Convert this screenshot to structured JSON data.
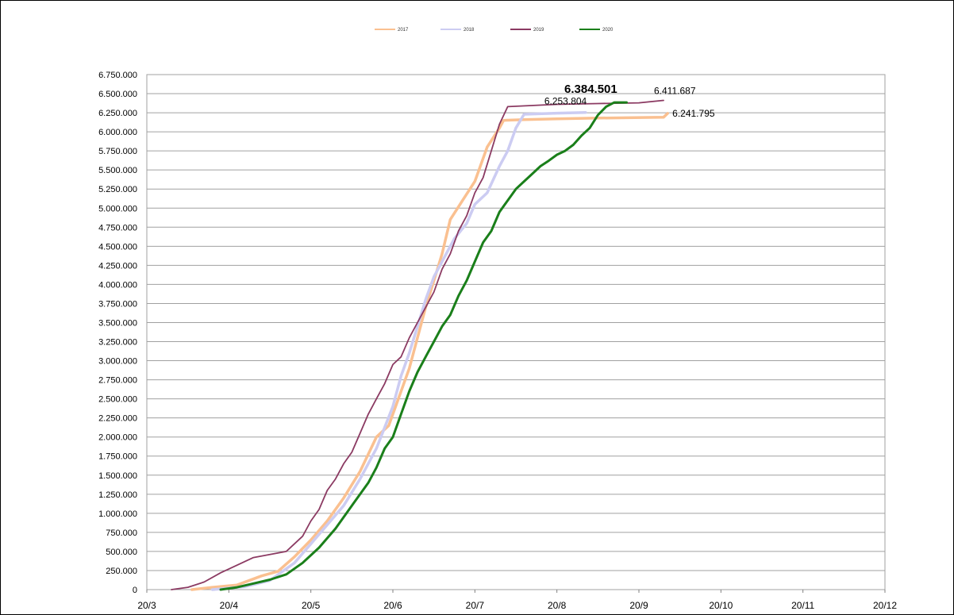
{
  "chart_data": {
    "type": "line",
    "title": "",
    "xlabel": "",
    "ylabel": "",
    "ylim": [
      0,
      6750000
    ],
    "grid": true,
    "legend_position": "top",
    "x_ticks": [
      "20/3",
      "20/4",
      "20/5",
      "20/6",
      "20/7",
      "20/8",
      "20/9",
      "20/10",
      "20/11",
      "20/12"
    ],
    "y_ticks": [
      "0",
      "250.000",
      "500.000",
      "750.000",
      "1.000.000",
      "1.250.000",
      "1.500.000",
      "1.750.000",
      "2.000.000",
      "2.250.000",
      "2.500.000",
      "2.750.000",
      "3.000.000",
      "3.250.000",
      "3.500.000",
      "3.750.000",
      "4.000.000",
      "4.250.000",
      "4.500.000",
      "4.750.000",
      "5.000.000",
      "5.250.000",
      "5.500.000",
      "5.750.000",
      "6.000.000",
      "6.250.000",
      "6.500.000",
      "6.750.000"
    ],
    "series": [
      {
        "name": "2017",
        "color": "#fac090",
        "points": [
          [
            0.55,
            0
          ],
          [
            0.8,
            30000
          ],
          [
            1.1,
            60000
          ],
          [
            1.4,
            180000
          ],
          [
            1.6,
            240000
          ],
          [
            1.8,
            430000
          ],
          [
            2.0,
            650000
          ],
          [
            2.2,
            900000
          ],
          [
            2.4,
            1200000
          ],
          [
            2.6,
            1550000
          ],
          [
            2.8,
            2000000
          ],
          [
            2.95,
            2150000
          ],
          [
            3.05,
            2450000
          ],
          [
            3.2,
            2900000
          ],
          [
            3.3,
            3300000
          ],
          [
            3.4,
            3700000
          ],
          [
            3.5,
            4050000
          ],
          [
            3.6,
            4400000
          ],
          [
            3.7,
            4850000
          ],
          [
            3.85,
            5100000
          ],
          [
            4.0,
            5350000
          ],
          [
            4.15,
            5800000
          ],
          [
            4.3,
            6050000
          ],
          [
            4.35,
            6150000
          ],
          [
            4.6,
            6160000
          ],
          [
            5.0,
            6170000
          ],
          [
            5.5,
            6180000
          ],
          [
            6.3,
            6190000
          ],
          [
            6.35,
            6241795
          ]
        ]
      },
      {
        "name": "2018",
        "color": "#ccccf2",
        "points": [
          [
            0.8,
            0
          ],
          [
            1.2,
            40000
          ],
          [
            1.5,
            120000
          ],
          [
            1.8,
            350000
          ],
          [
            2.0,
            600000
          ],
          [
            2.2,
            850000
          ],
          [
            2.4,
            1100000
          ],
          [
            2.6,
            1450000
          ],
          [
            2.8,
            1850000
          ],
          [
            3.0,
            2400000
          ],
          [
            3.1,
            2800000
          ],
          [
            3.2,
            3100000
          ],
          [
            3.3,
            3450000
          ],
          [
            3.4,
            3800000
          ],
          [
            3.5,
            4100000
          ],
          [
            3.6,
            4300000
          ],
          [
            3.75,
            4600000
          ],
          [
            3.9,
            4800000
          ],
          [
            4.0,
            5050000
          ],
          [
            4.15,
            5200000
          ],
          [
            4.3,
            5550000
          ],
          [
            4.4,
            5750000
          ],
          [
            4.5,
            6050000
          ],
          [
            4.6,
            6230000
          ],
          [
            5.0,
            6245000
          ],
          [
            5.35,
            6253804
          ]
        ]
      },
      {
        "name": "2019",
        "color": "#8b3a62",
        "points": [
          [
            0.3,
            0
          ],
          [
            0.5,
            30000
          ],
          [
            0.7,
            100000
          ],
          [
            0.9,
            220000
          ],
          [
            1.1,
            320000
          ],
          [
            1.3,
            420000
          ],
          [
            1.5,
            460000
          ],
          [
            1.7,
            500000
          ],
          [
            1.8,
            600000
          ],
          [
            1.9,
            700000
          ],
          [
            2.0,
            900000
          ],
          [
            2.1,
            1050000
          ],
          [
            2.2,
            1300000
          ],
          [
            2.3,
            1450000
          ],
          [
            2.4,
            1650000
          ],
          [
            2.5,
            1800000
          ],
          [
            2.6,
            2050000
          ],
          [
            2.7,
            2300000
          ],
          [
            2.8,
            2500000
          ],
          [
            2.9,
            2700000
          ],
          [
            3.0,
            2950000
          ],
          [
            3.1,
            3050000
          ],
          [
            3.2,
            3300000
          ],
          [
            3.3,
            3500000
          ],
          [
            3.4,
            3700000
          ],
          [
            3.5,
            3900000
          ],
          [
            3.6,
            4200000
          ],
          [
            3.7,
            4400000
          ],
          [
            3.8,
            4700000
          ],
          [
            3.9,
            4900000
          ],
          [
            4.0,
            5200000
          ],
          [
            4.1,
            5400000
          ],
          [
            4.2,
            5750000
          ],
          [
            4.3,
            6100000
          ],
          [
            4.4,
            6330000
          ],
          [
            5.0,
            6360000
          ],
          [
            5.5,
            6370000
          ],
          [
            6.0,
            6380000
          ],
          [
            6.3,
            6411687
          ]
        ]
      },
      {
        "name": "2020",
        "color": "#1a7f1a",
        "points": [
          [
            0.9,
            0
          ],
          [
            1.1,
            30000
          ],
          [
            1.3,
            80000
          ],
          [
            1.5,
            130000
          ],
          [
            1.7,
            200000
          ],
          [
            1.9,
            350000
          ],
          [
            2.1,
            550000
          ],
          [
            2.3,
            800000
          ],
          [
            2.5,
            1100000
          ],
          [
            2.7,
            1400000
          ],
          [
            2.8,
            1600000
          ],
          [
            2.9,
            1850000
          ],
          [
            3.0,
            2000000
          ],
          [
            3.1,
            2300000
          ],
          [
            3.2,
            2600000
          ],
          [
            3.3,
            2850000
          ],
          [
            3.4,
            3050000
          ],
          [
            3.5,
            3250000
          ],
          [
            3.6,
            3450000
          ],
          [
            3.7,
            3600000
          ],
          [
            3.8,
            3850000
          ],
          [
            3.9,
            4050000
          ],
          [
            4.0,
            4300000
          ],
          [
            4.1,
            4550000
          ],
          [
            4.2,
            4700000
          ],
          [
            4.3,
            4950000
          ],
          [
            4.4,
            5100000
          ],
          [
            4.5,
            5250000
          ],
          [
            4.6,
            5350000
          ],
          [
            4.7,
            5450000
          ],
          [
            4.8,
            5550000
          ],
          [
            4.9,
            5620000
          ],
          [
            5.0,
            5700000
          ],
          [
            5.1,
            5750000
          ],
          [
            5.2,
            5830000
          ],
          [
            5.3,
            5950000
          ],
          [
            5.4,
            6050000
          ],
          [
            5.5,
            6220000
          ],
          [
            5.6,
            6330000
          ],
          [
            5.7,
            6384501
          ],
          [
            5.85,
            6384501
          ]
        ]
      }
    ],
    "annotations": {
      "a2018": "6.253.804",
      "a2020": "6.384.501",
      "a2019": "6.411.687",
      "a2017": "6.241.795"
    }
  }
}
